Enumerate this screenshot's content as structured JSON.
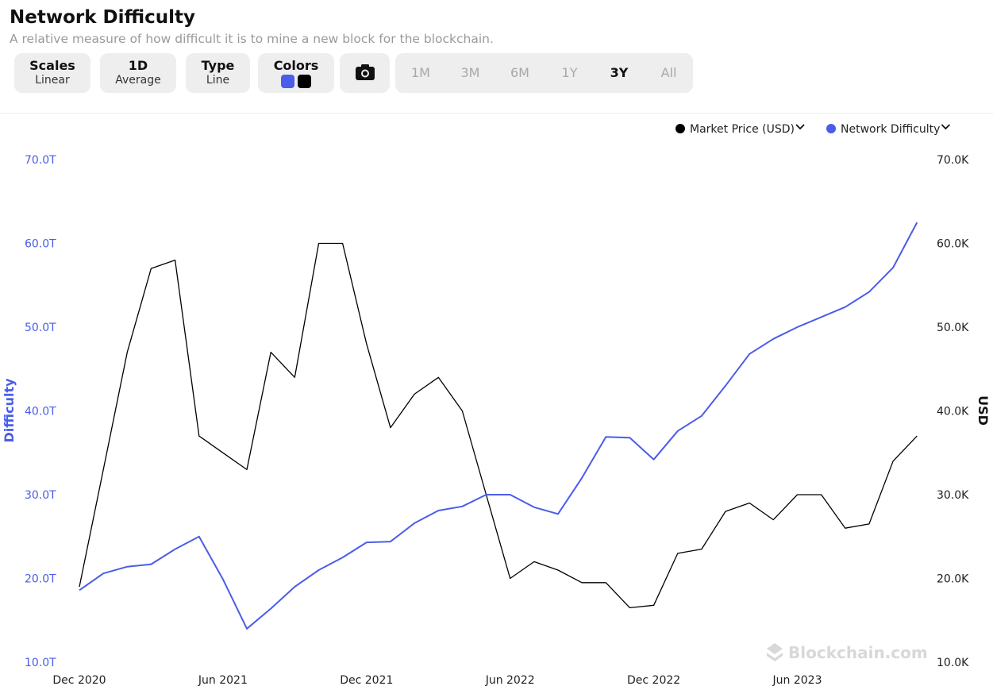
{
  "header": {
    "title": "Network Difficulty",
    "subtitle": "A relative measure of how difficult it is to mine a new block for the blockchain."
  },
  "controls": [
    {
      "key": "Scales",
      "value": "Linear"
    },
    {
      "key": "1D",
      "value": "Average"
    },
    {
      "key": "Type",
      "value": "Line"
    },
    {
      "key": "Colors"
    }
  ],
  "ranges": [
    "1M",
    "3M",
    "6M",
    "1Y",
    "3Y",
    "All"
  ],
  "selected_range": "3Y",
  "watermark": "Blockchain.com",
  "chart_data": {
    "type": "line",
    "x": [
      "Dec 2020",
      "Jan 2021",
      "Feb 2021",
      "Mar 2021",
      "Apr 2021",
      "May 2021",
      "Jun 2021",
      "Jul 2021",
      "Aug 2021",
      "Sep 2021",
      "Oct 2021",
      "Nov 2021",
      "Dec 2021",
      "Jan 2022",
      "Feb 2022",
      "Mar 2022",
      "Apr 2022",
      "May 2022",
      "Jun 2022",
      "Jul 2022",
      "Aug 2022",
      "Sep 2022",
      "Oct 2022",
      "Nov 2022",
      "Dec 2022",
      "Jan 2023",
      "Feb 2023",
      "Mar 2023",
      "Apr 2023",
      "May 2023",
      "Jun 2023",
      "Jul 2023",
      "Aug 2023",
      "Sep 2023",
      "Oct 2023",
      "Nov 2023"
    ],
    "xticks": [
      "Dec 2020",
      "Jun 2021",
      "Dec 2021",
      "Jun 2022",
      "Dec 2022",
      "Jun 2023"
    ],
    "series": [
      {
        "name": "Market Price (USD)",
        "color": "#000000",
        "axis": "y2",
        "values": [
          19,
          33,
          47,
          57,
          58,
          37,
          35,
          33,
          47,
          44,
          60,
          60,
          48,
          38,
          42,
          44,
          40,
          30,
          20,
          22,
          21,
          19.5,
          19.5,
          16.5,
          16.8,
          23,
          23.5,
          28,
          29,
          27,
          30,
          30,
          26,
          26.5,
          34,
          37
        ]
      },
      {
        "name": "Network Difficulty",
        "color": "#4a5de8",
        "values": [
          18.6,
          20.6,
          21.4,
          21.7,
          23.5,
          25.0,
          19.9,
          14.0,
          16.4,
          19.0,
          21.0,
          22.5,
          24.3,
          24.4,
          26.6,
          28.1,
          28.6,
          30.0,
          30.0,
          28.5,
          27.7,
          32.0,
          36.9,
          36.8,
          34.2,
          37.6,
          39.4,
          43.0,
          46.8,
          48.6,
          50.0,
          51.2,
          52.4,
          54.2,
          57.1,
          62.5
        ]
      }
    ],
    "ylabel": "Difficulty",
    "y2label": "USD",
    "ylim": [
      10,
      70
    ],
    "yticks": [
      {
        "value": 10,
        "label": "10.0T"
      },
      {
        "value": 20,
        "label": "20.0T"
      },
      {
        "value": 30,
        "label": "30.0T"
      },
      {
        "value": 40,
        "label": "40.0T"
      },
      {
        "value": 50,
        "label": "50.0T"
      },
      {
        "value": 60,
        "label": "60.0T"
      },
      {
        "value": 70,
        "label": "70.0T"
      }
    ],
    "y2lim": [
      10,
      70
    ],
    "y2ticks": [
      {
        "value": 10,
        "label": "10.0K"
      },
      {
        "value": 20,
        "label": "20.0K"
      },
      {
        "value": 30,
        "label": "30.0K"
      },
      {
        "value": 40,
        "label": "40.0K"
      },
      {
        "value": 50,
        "label": "50.0K"
      },
      {
        "value": 60,
        "label": "60.0K"
      },
      {
        "value": 70,
        "label": "70.0K"
      }
    ],
    "grid": false,
    "legend": "top-right"
  }
}
